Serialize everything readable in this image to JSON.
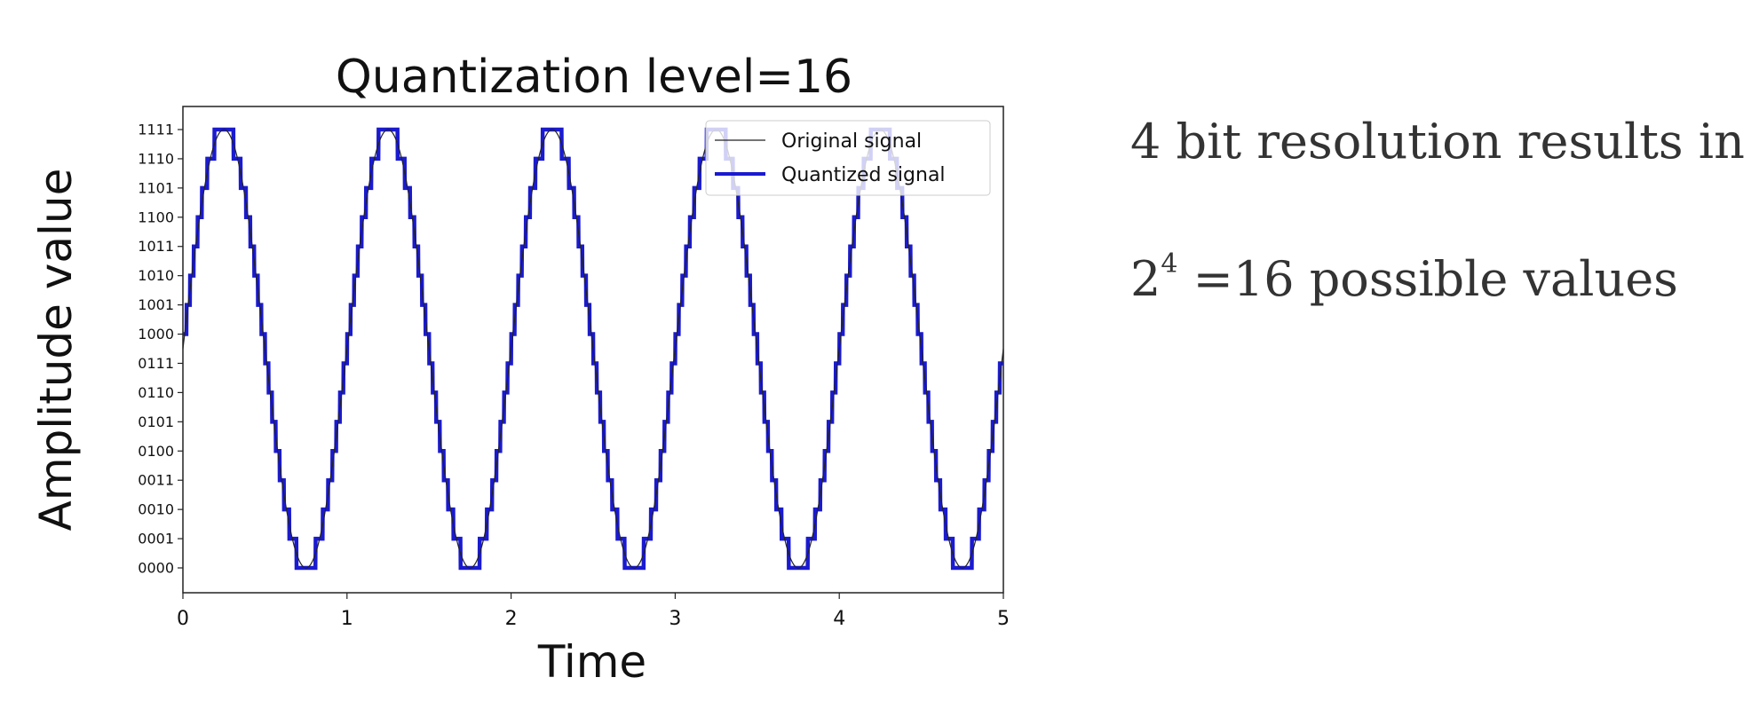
{
  "chart_data": {
    "type": "line",
    "title": "Quantization level=16",
    "xlabel": "Time",
    "ylabel": "Amplitude value",
    "xlim": [
      0,
      5
    ],
    "x_ticks": [
      "0",
      "1",
      "2",
      "3",
      "4",
      "5"
    ],
    "ylim": [
      0,
      15
    ],
    "y_ticks": [
      "0000",
      "0001",
      "0010",
      "0011",
      "0100",
      "0101",
      "0110",
      "0111",
      "1000",
      "1001",
      "1010",
      "1011",
      "1100",
      "1101",
      "1110",
      "1111"
    ],
    "legend": {
      "location": "top-right",
      "entries": [
        "Original signal",
        "Quantized signal"
      ]
    },
    "grid": false,
    "series": [
      {
        "name": "Original signal",
        "function": "7.5 + 7.5*sin(2*pi*t)",
        "x_range": [
          0,
          5
        ],
        "color": "#222222"
      },
      {
        "name": "Quantized signal",
        "function": "round(7.5 + 7.5*sin(2*pi*t))",
        "x_range": [
          0,
          5
        ],
        "levels": 16,
        "color": "#1a1ad0"
      }
    ]
  },
  "side_text": {
    "line1": "4 bit resolution results in",
    "line2_base": "2",
    "line2_exp": "4",
    "line2_rest": " =16 possible values"
  }
}
